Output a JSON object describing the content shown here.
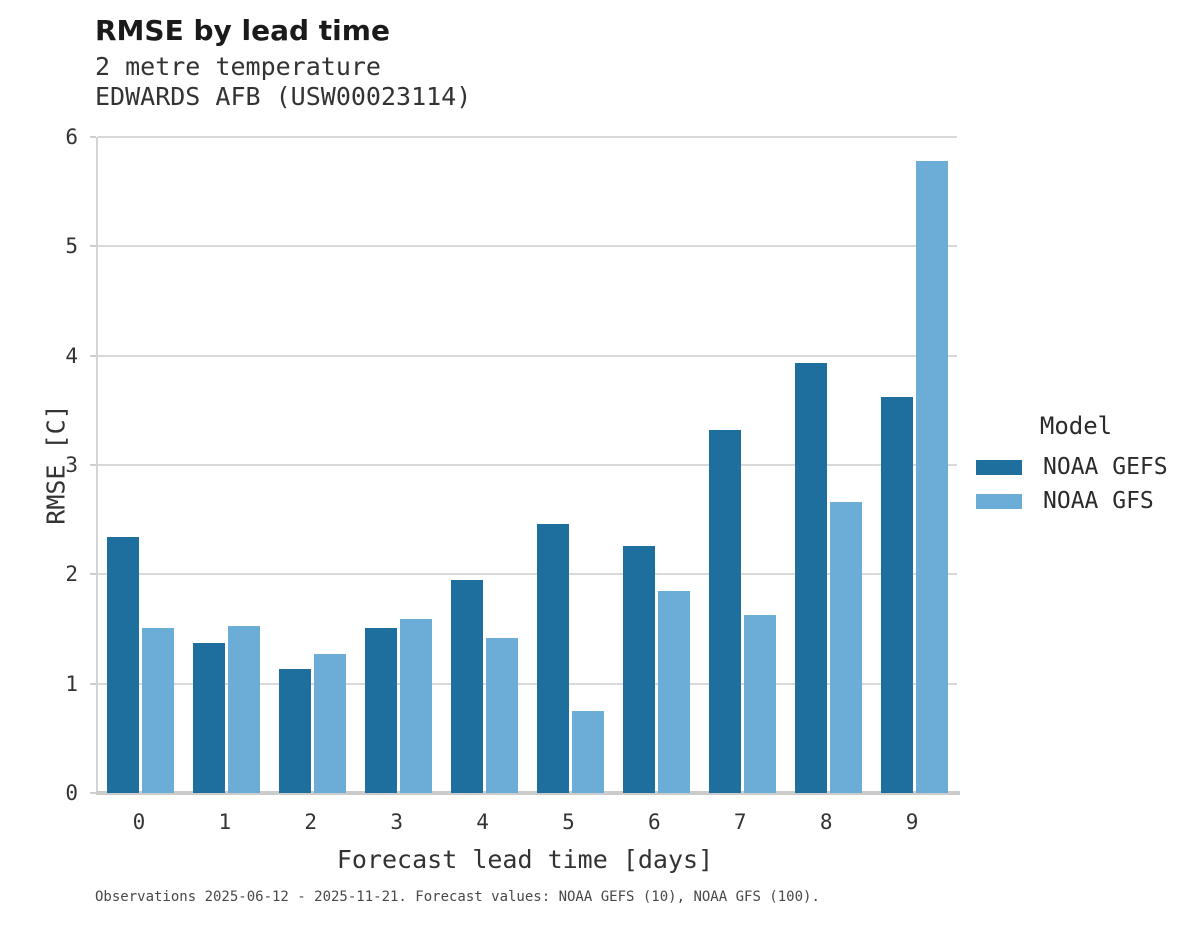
{
  "header": {
    "title": "RMSE by lead time",
    "subtitle_line1": "2 metre temperature",
    "subtitle_line2": "EDWARDS AFB (USW00023114)"
  },
  "legend": {
    "title": "Model",
    "entries": [
      {
        "label": "NOAA GEFS",
        "color": "#1e6f9d"
      },
      {
        "label": "NOAA GFS",
        "color": "#6badd6"
      }
    ]
  },
  "caption": {
    "text": "Observations 2025-06-12 - 2025-11-21. Forecast values: NOAA GEFS (10), NOAA GFS (100)."
  },
  "colors": {
    "gefs": "#1e6f9d",
    "gfs": "#6badd6",
    "gridline": "#d9d9d9",
    "spine": "#cbcbcb",
    "text": "#333333"
  },
  "chart_data": {
    "type": "bar",
    "title": "RMSE by lead time",
    "subtitle": "2 metre temperature — EDWARDS AFB (USW00023114)",
    "categories": [
      "0",
      "1",
      "2",
      "3",
      "4",
      "5",
      "6",
      "7",
      "8",
      "9"
    ],
    "series": [
      {
        "name": "NOAA GEFS",
        "color": "#1e6f9d",
        "values": [
          2.34,
          1.37,
          1.13,
          1.51,
          1.95,
          2.46,
          2.26,
          3.32,
          3.93,
          3.62
        ]
      },
      {
        "name": "NOAA GFS",
        "color": "#6badd6",
        "values": [
          1.51,
          1.53,
          1.27,
          1.59,
          1.42,
          0.75,
          1.85,
          1.63,
          2.66,
          5.78
        ]
      }
    ],
    "xlabel": "Forecast lead time [days]",
    "ylabel": "RMSE [C]",
    "ylim": [
      0,
      6
    ],
    "y_ticks": [
      0,
      1,
      2,
      3,
      4,
      5,
      6
    ],
    "grid": "horizontal",
    "legend_title": "Model",
    "legend_position": "right"
  }
}
